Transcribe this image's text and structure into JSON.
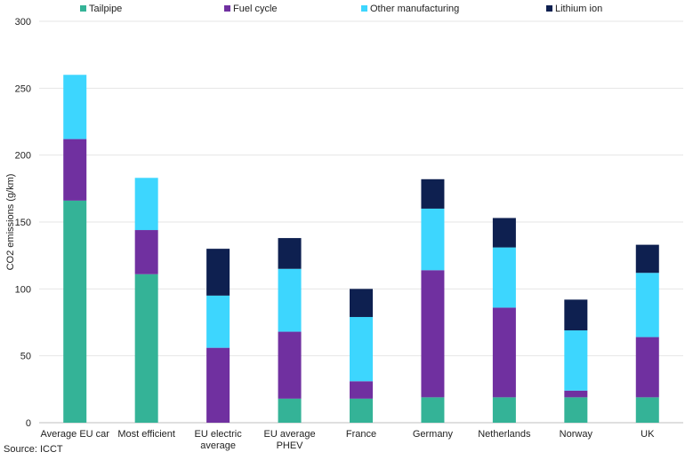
{
  "chart_data": {
    "type": "bar",
    "stacked": true,
    "title": "",
    "xlabel": "",
    "ylabel": "CO2 emissions (g/km)",
    "ylim": [
      0,
      300
    ],
    "yticks": [
      0,
      50,
      100,
      150,
      200,
      250,
      300
    ],
    "grid": true,
    "legend_position": "top",
    "categories": [
      "Average EU car",
      "Most efficient",
      "EU electric average",
      "EU average PHEV",
      "France",
      "Germany",
      "Netherlands",
      "Norway",
      "UK"
    ],
    "category_lines": [
      [
        "Average EU car"
      ],
      [
        "Most efficient"
      ],
      [
        "EU electric",
        "average"
      ],
      [
        "EU average",
        "PHEV"
      ],
      [
        "France"
      ],
      [
        "Germany"
      ],
      [
        "Netherlands"
      ],
      [
        "Norway"
      ],
      [
        "UK"
      ]
    ],
    "series": [
      {
        "name": "Tailpipe",
        "color": "#34b397",
        "values": [
          166,
          111,
          0,
          18,
          18,
          19,
          19,
          19,
          19
        ]
      },
      {
        "name": "Fuel cycle",
        "color": "#7030a0",
        "values": [
          46,
          33,
          56,
          50,
          13,
          95,
          67,
          5,
          45
        ]
      },
      {
        "name": "Other manufacturing",
        "color": "#3dd6fe",
        "values": [
          48,
          39,
          39,
          47,
          48,
          46,
          45,
          45,
          48
        ]
      },
      {
        "name": "Lithium ion",
        "color": "#0e2050",
        "values": [
          0,
          0,
          35,
          23,
          21,
          22,
          22,
          23,
          21
        ]
      }
    ]
  },
  "source": "Source: ICCT"
}
